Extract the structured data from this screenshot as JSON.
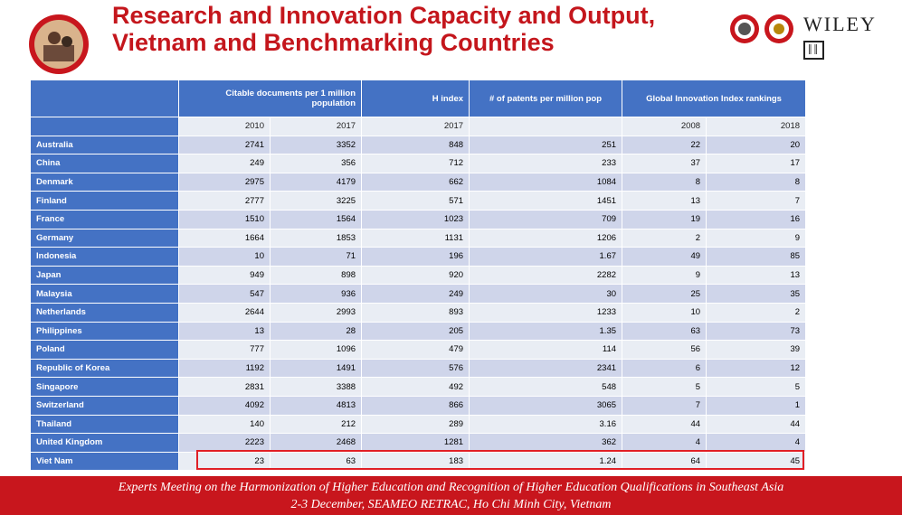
{
  "header": {
    "title": [
      "Research and Innovation Capacity and Output,",
      "Vietnam and Benchmarking Countries"
    ],
    "publisher": "WILEY"
  },
  "table": {
    "columns": [
      "Citable documents per 1 million population",
      "H index",
      "# of patents per million pop",
      "Global Innovation Index rankings"
    ],
    "years": {
      "citable": [
        2010,
        2017
      ],
      "h_index": 2017,
      "gii": [
        2008,
        2018
      ]
    },
    "rows": [
      [
        "Australia",
        2741,
        3352,
        848,
        251,
        22,
        20
      ],
      [
        "China",
        249,
        356,
        712,
        233,
        37,
        17
      ],
      [
        "Denmark",
        2975,
        4179,
        662,
        1084,
        8,
        8
      ],
      [
        "Finland",
        2777,
        3225,
        571,
        1451,
        13,
        7
      ],
      [
        "France",
        1510,
        1564,
        1023,
        709,
        19,
        16
      ],
      [
        "Germany",
        1664,
        1853,
        1131,
        1206,
        2,
        9
      ],
      [
        "Indonesia",
        10,
        71,
        196,
        1.67,
        49,
        85
      ],
      [
        "Japan",
        949,
        898,
        920,
        2282,
        9,
        13
      ],
      [
        "Malaysia",
        547,
        936,
        249,
        30,
        25,
        35
      ],
      [
        "Netherlands",
        2644,
        2993,
        893,
        1233,
        10,
        2
      ],
      [
        "Philippines",
        13,
        28,
        205,
        1.35,
        63,
        73
      ],
      [
        "Poland",
        777,
        1096,
        479,
        114,
        56,
        39
      ],
      [
        "Republic of Korea",
        1192,
        1491,
        576,
        2341,
        6,
        12
      ],
      [
        "Singapore",
        2831,
        3388,
        492,
        548,
        5,
        5
      ],
      [
        "Switzerland",
        4092,
        4813,
        866,
        3065,
        7,
        1
      ],
      [
        "Thailand",
        140,
        212,
        289,
        3.16,
        44,
        44
      ],
      [
        "United Kingdom",
        2223,
        2468,
        1281,
        362,
        4,
        4
      ],
      [
        "Viet Nam",
        23,
        63,
        183,
        1.24,
        64,
        45
      ]
    ]
  },
  "footer": {
    "lines": [
      "Experts Meeting on the Harmonization of Higher Education and Recognition of Higher Education Qualifications in Southeast Asia",
      "2-3 December, SEAMEO RETRAC, Ho Chi Minh City, Vietnam"
    ]
  }
}
